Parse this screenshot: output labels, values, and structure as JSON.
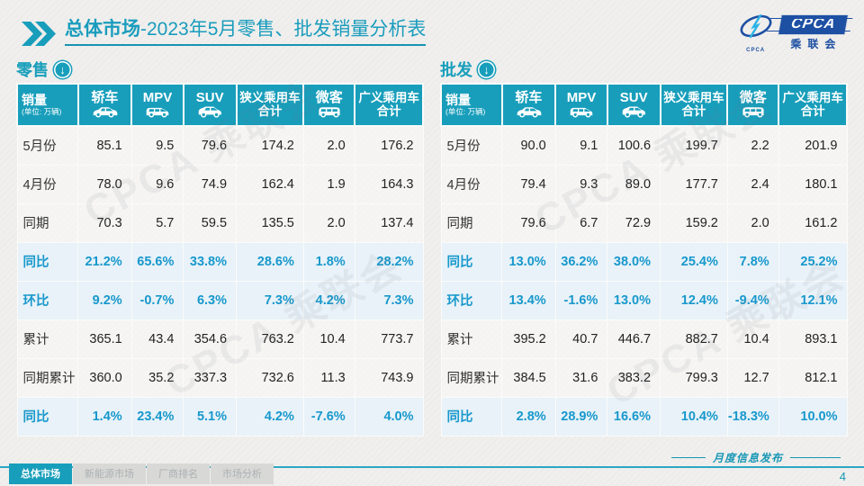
{
  "header": {
    "title_bold": "总体市场",
    "title_rest": "-2023年5月零售、批发销量分析表"
  },
  "logo": {
    "acronym": "CPCA",
    "org_cn": "乘联会",
    "emblem_text": "CPCA"
  },
  "watermark": "CPCA 乘联会",
  "table_columns": {
    "label_header": "销量",
    "label_unit": "(单位: 万辆)",
    "cols": [
      {
        "label": "轿车",
        "icon": "sedan-icon"
      },
      {
        "label": "MPV",
        "icon": "mpv-icon"
      },
      {
        "label": "SUV",
        "icon": "suv-icon"
      },
      {
        "label": "狭义乘用车",
        "label2": "合计"
      },
      {
        "label": "微客",
        "icon": "minibus-icon"
      },
      {
        "label": "广义乘用车",
        "label2": "合计"
      }
    ]
  },
  "tables": [
    {
      "id": "retail",
      "title": "零售",
      "rows": [
        {
          "label": "5月份",
          "highlight": false,
          "values": [
            "85.1",
            "9.5",
            "79.6",
            "174.2",
            "2.0",
            "176.2"
          ]
        },
        {
          "label": "4月份",
          "highlight": false,
          "values": [
            "78.0",
            "9.6",
            "74.9",
            "162.4",
            "1.9",
            "164.3"
          ]
        },
        {
          "label": "同期",
          "highlight": false,
          "values": [
            "70.3",
            "5.7",
            "59.5",
            "135.5",
            "2.0",
            "137.4"
          ]
        },
        {
          "label": "同比",
          "highlight": true,
          "values": [
            "21.2%",
            "65.6%",
            "33.8%",
            "28.6%",
            "1.8%",
            "28.2%"
          ]
        },
        {
          "label": "环比",
          "highlight": true,
          "values": [
            "9.2%",
            "-0.7%",
            "6.3%",
            "7.3%",
            "4.2%",
            "7.3%"
          ]
        },
        {
          "label": "累计",
          "highlight": false,
          "values": [
            "365.1",
            "43.4",
            "354.6",
            "763.2",
            "10.4",
            "773.7"
          ]
        },
        {
          "label": "同期累计",
          "highlight": false,
          "values": [
            "360.0",
            "35.2",
            "337.3",
            "732.6",
            "11.3",
            "743.9"
          ]
        },
        {
          "label": "同比",
          "highlight": true,
          "values": [
            "1.4%",
            "23.4%",
            "5.1%",
            "4.2%",
            "-7.6%",
            "4.0%"
          ]
        }
      ]
    },
    {
      "id": "wholesale",
      "title": "批发",
      "rows": [
        {
          "label": "5月份",
          "highlight": false,
          "values": [
            "90.0",
            "9.1",
            "100.6",
            "199.7",
            "2.2",
            "201.9"
          ]
        },
        {
          "label": "4月份",
          "highlight": false,
          "values": [
            "79.4",
            "9.3",
            "89.0",
            "177.7",
            "2.4",
            "180.1"
          ]
        },
        {
          "label": "同期",
          "highlight": false,
          "values": [
            "79.6",
            "6.7",
            "72.9",
            "159.2",
            "2.0",
            "161.2"
          ]
        },
        {
          "label": "同比",
          "highlight": true,
          "values": [
            "13.0%",
            "36.2%",
            "38.0%",
            "25.4%",
            "7.8%",
            "25.2%"
          ]
        },
        {
          "label": "环比",
          "highlight": true,
          "values": [
            "13.4%",
            "-1.6%",
            "13.0%",
            "12.4%",
            "-9.4%",
            "12.1%"
          ]
        },
        {
          "label": "累计",
          "highlight": false,
          "values": [
            "395.2",
            "40.7",
            "446.7",
            "882.7",
            "10.4",
            "893.1"
          ]
        },
        {
          "label": "同期累计",
          "highlight": false,
          "values": [
            "384.5",
            "31.6",
            "383.2",
            "799.3",
            "12.7",
            "812.1"
          ]
        },
        {
          "label": "同比",
          "highlight": true,
          "values": [
            "2.8%",
            "28.9%",
            "16.6%",
            "10.4%",
            "-18.3%",
            "10.0%"
          ]
        }
      ]
    }
  ],
  "footer": {
    "tabs": [
      {
        "label": "总体市场",
        "active": true
      },
      {
        "label": "新能源市场",
        "active": false
      },
      {
        "label": "厂商排名",
        "active": false
      },
      {
        "label": "市场分析",
        "active": false
      }
    ],
    "note": "月度信息发布",
    "page_number": "4"
  },
  "colors": {
    "accent_teal": "#189EBB",
    "percent_blue": "#1898CC",
    "highlight_row_bg": "#E8F2F8",
    "logo_blue": "#1D4FA3"
  }
}
